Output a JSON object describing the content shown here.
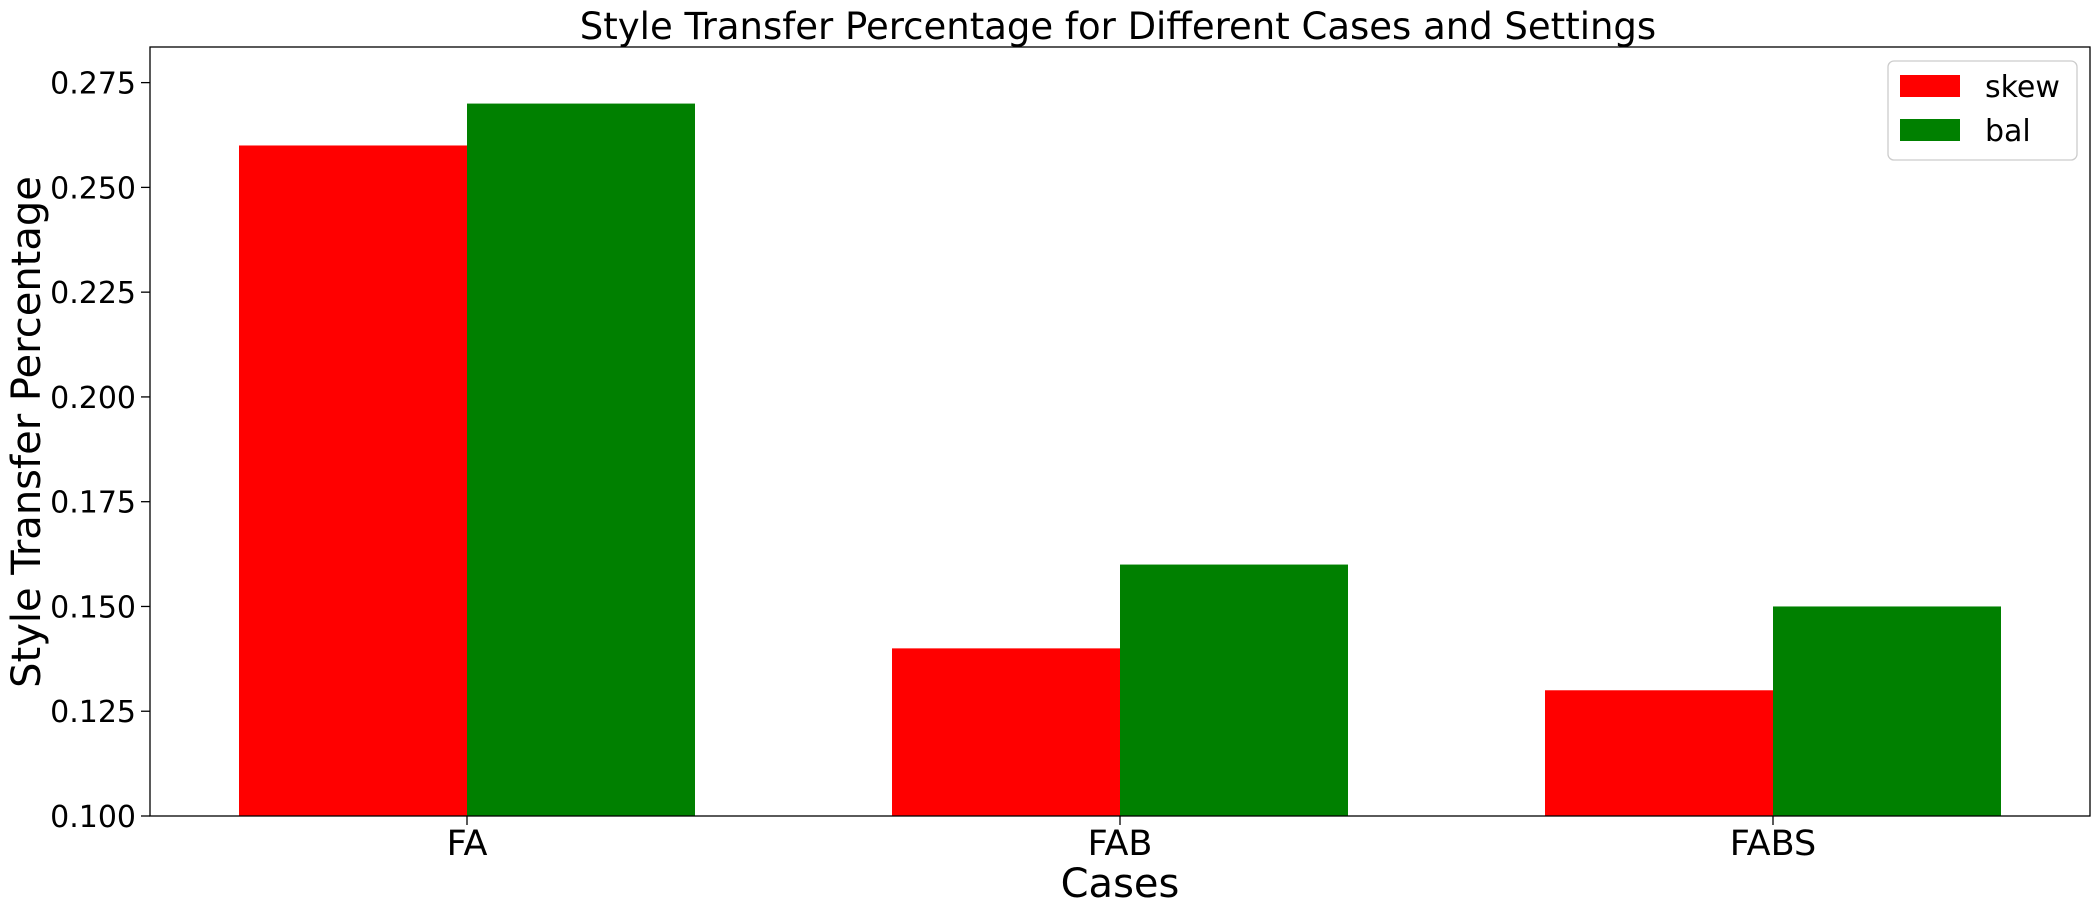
{
  "chart_data": {
    "type": "bar",
    "title": "Style Transfer Percentage for Different Cases and Settings",
    "xlabel": "Cases",
    "ylabel": "Style Transfer Percentage",
    "categories": [
      "FA",
      "FAB",
      "FABS"
    ],
    "series": [
      {
        "name": "skew",
        "values": [
          0.26,
          0.14,
          0.13
        ],
        "color": "#ff0000"
      },
      {
        "name": "bal",
        "values": [
          0.27,
          0.16,
          0.15
        ],
        "color": "#008000"
      }
    ],
    "ylim": [
      0.1,
      0.2835
    ],
    "yticks": [
      0.1,
      0.125,
      0.15,
      0.175,
      0.2,
      0.225,
      0.25,
      0.275
    ],
    "ytick_labels": [
      "0.100",
      "0.125",
      "0.150",
      "0.175",
      "0.200",
      "0.225",
      "0.250",
      "0.275"
    ],
    "grid": false,
    "legend_position": "top-right"
  }
}
